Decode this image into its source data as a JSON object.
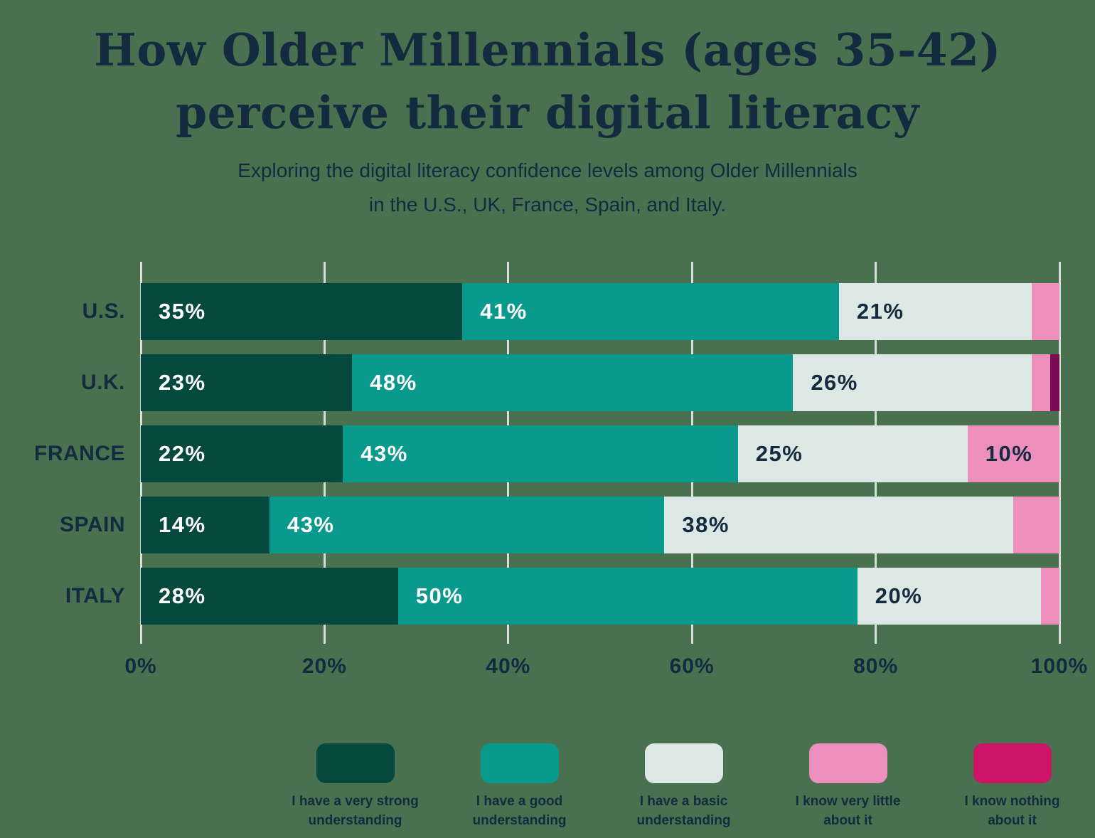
{
  "title": {
    "line1": "How Older Millennials (ages 35-42)",
    "line2": "perceive their digital literacy"
  },
  "subtitle": {
    "line1": "Exploring the digital literacy confidence levels among Older Millennials",
    "line2": "in the U.S., UK, France, Spain, and Italy."
  },
  "colors": {
    "background": "#4a714f",
    "text_navy": "#132a3f",
    "bar_label_on_dark": "#ffffff",
    "bar_label_on_light": "#132a3f",
    "gridline": "rgba(255,255,255,0.78)"
  },
  "chart_data": {
    "type": "bar",
    "stacked": true,
    "orientation": "horizontal",
    "categories": [
      "U.S.",
      "U.K.",
      "FRANCE",
      "SPAIN",
      "ITALY"
    ],
    "series": [
      {
        "name": "I have a very strong understanding",
        "name_lines": [
          "I have a very strong",
          "understanding"
        ],
        "color": "#05493e",
        "legend_color": "#05493e",
        "label_color": "#ffffff",
        "values": [
          35,
          23,
          22,
          14,
          28
        ]
      },
      {
        "name": "I have a good understanding",
        "name_lines": [
          "I have a good",
          "understanding"
        ],
        "color": "#0a9a8d",
        "legend_color": "#0a9a8d",
        "label_color": "#ffffff",
        "values": [
          41,
          48,
          43,
          43,
          50
        ]
      },
      {
        "name": "I have a basic understanding",
        "name_lines": [
          "I have a basic",
          "understanding"
        ],
        "color": "#dce8e4",
        "legend_color": "#dce8e4",
        "label_color": "#132a3f",
        "values": [
          21,
          26,
          25,
          38,
          20
        ]
      },
      {
        "name": "I know very little about it",
        "name_lines": [
          "I know very little",
          "about it"
        ],
        "color": "#ed8fbc",
        "legend_color": "#ed8fbc",
        "label_color": "#132a3f",
        "values": [
          3,
          2,
          10,
          5,
          2
        ]
      },
      {
        "name": "I know nothing about it",
        "name_lines": [
          "I know nothing",
          "about it"
        ],
        "color": "#7a0d52",
        "legend_color": "#ce1467",
        "label_color": "#ffffff",
        "values": [
          0,
          1,
          0,
          0,
          0
        ]
      }
    ],
    "x_ticks": [
      "0%",
      "20%",
      "40%",
      "60%",
      "80%",
      "100%"
    ],
    "xlim": [
      0,
      100
    ],
    "value_suffix": "%",
    "grid": true,
    "legend_position": "bottom"
  }
}
